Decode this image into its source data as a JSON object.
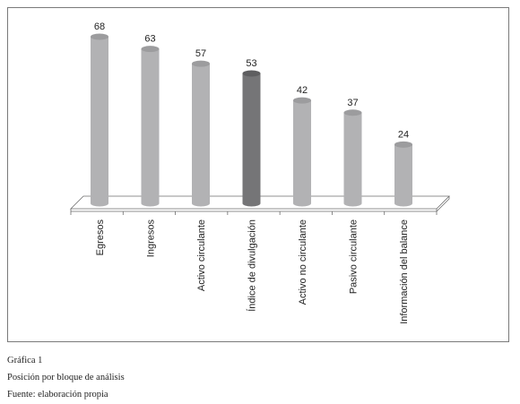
{
  "chart_data": {
    "type": "bar",
    "categories": [
      "Egresos",
      "Ingresos",
      "Activo circulante",
      "Índice de divulgación",
      "Activo no circulante",
      "Pasivo circulante",
      "Información del balance"
    ],
    "values": [
      68,
      63,
      57,
      53,
      42,
      37,
      24
    ],
    "highlight_index": 3,
    "ylim": [
      0,
      75
    ],
    "grid": false,
    "legend": "none",
    "colors": {
      "bar": "#b2b2b4",
      "bar_top": "#9c9c9e",
      "highlight": "#757577",
      "highlight_top": "#5e5e60",
      "floor": "#ffffff",
      "stroke": "#6d6d6d"
    }
  },
  "caption": {
    "figure": "Gráfica 1",
    "title": "Posición por bloque de análisis",
    "source": "Fuente: elaboración propia"
  }
}
